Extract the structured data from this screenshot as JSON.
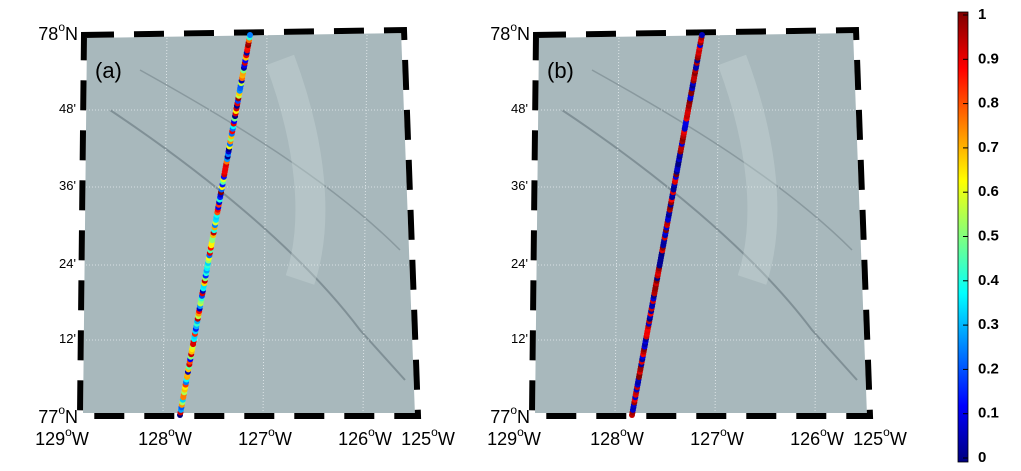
{
  "panels": [
    {
      "label": "(a)"
    },
    {
      "label": "(b)"
    }
  ],
  "degree_mark": "o",
  "lat_labels": [
    {
      "value": "78",
      "hemi": "N"
    },
    {
      "value": "48'"
    },
    {
      "value": "36'"
    },
    {
      "value": "24'"
    },
    {
      "value": "12'"
    },
    {
      "value": "77",
      "hemi": "N"
    }
  ],
  "lon_labels": [
    {
      "value": "129",
      "hemi": "W"
    },
    {
      "value": "128",
      "hemi": "W"
    },
    {
      "value": "127",
      "hemi": "W"
    },
    {
      "value": "126",
      "hemi": "W"
    },
    {
      "value": "125",
      "hemi": "W"
    }
  ],
  "colorbar": {
    "ticks": [
      "0",
      "0.1",
      "0.2",
      "0.3",
      "0.4",
      "0.5",
      "0.6",
      "0.7",
      "0.8",
      "0.9",
      "1"
    ]
  }
}
